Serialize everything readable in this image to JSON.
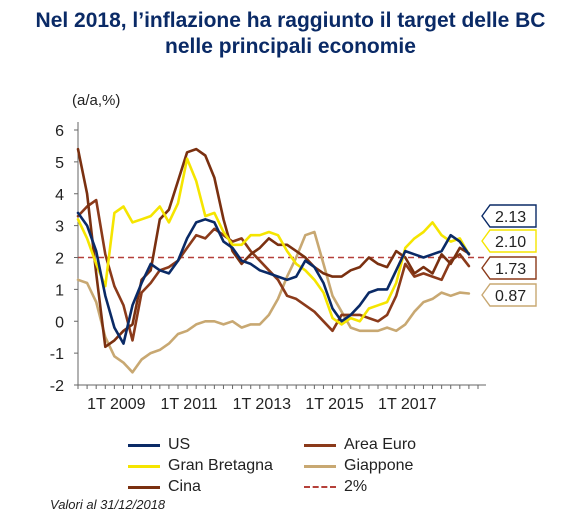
{
  "title_line1": "Nel 2018, l’inflazione ha raggiunto il target delle BC",
  "title_line2": "nelle principali economie",
  "note": "Valori al 31/12/2018",
  "chart_data": {
    "type": "line",
    "ylabel": "(a/a,%)",
    "ylim": [
      -2,
      6
    ],
    "yticks": [
      -2,
      -1,
      0,
      1,
      2,
      3,
      4,
      5,
      6
    ],
    "xlim": [
      2008.0,
      2019.0
    ],
    "xticks": [
      {
        "label": "1T 2009",
        "x": 2009.0
      },
      {
        "label": "1T 2011",
        "x": 2011.0
      },
      {
        "label": "1T 2013",
        "x": 2013.0
      },
      {
        "label": "1T 2015",
        "x": 2015.0
      },
      {
        "label": "1T 2017",
        "x": 2017.0
      }
    ],
    "reference_line": {
      "name": "2%",
      "value": 2,
      "color": "#b5403a"
    },
    "end_labels": [
      "2.13",
      "2.10",
      "1.73",
      "0.87"
    ],
    "series": [
      {
        "name": "US",
        "color": "#0a2a66",
        "x": [
          2008.0,
          2008.25,
          2008.5,
          2008.75,
          2009.0,
          2009.25,
          2009.5,
          2009.75,
          2010.0,
          2010.25,
          2010.5,
          2010.75,
          2011.0,
          2011.25,
          2011.5,
          2011.75,
          2012.0,
          2012.25,
          2012.5,
          2012.75,
          2013.0,
          2013.25,
          2013.5,
          2013.75,
          2014.0,
          2014.25,
          2014.5,
          2014.75,
          2015.0,
          2015.25,
          2015.5,
          2015.75,
          2016.0,
          2016.25,
          2016.5,
          2016.75,
          2017.0,
          2017.25,
          2017.5,
          2017.75,
          2018.0,
          2018.25,
          2018.5,
          2018.75
        ],
        "values": [
          3.4,
          3.0,
          2.2,
          0.8,
          -0.2,
          -0.7,
          0.5,
          1.2,
          1.8,
          1.6,
          1.5,
          1.9,
          2.6,
          3.1,
          3.2,
          3.1,
          2.5,
          2.3,
          1.9,
          1.8,
          1.6,
          1.5,
          1.4,
          1.3,
          1.4,
          1.9,
          1.7,
          1.2,
          0.4,
          0.0,
          0.2,
          0.5,
          0.9,
          1.0,
          1.0,
          1.6,
          2.2,
          2.1,
          2.0,
          2.1,
          2.2,
          2.7,
          2.5,
          2.1
        ]
      },
      {
        "name": "Area Euro",
        "color": "#8b3a1a",
        "x": [
          2008.0,
          2008.25,
          2008.5,
          2008.75,
          2009.0,
          2009.25,
          2009.5,
          2009.75,
          2010.0,
          2010.25,
          2010.5,
          2010.75,
          2011.0,
          2011.25,
          2011.5,
          2011.75,
          2012.0,
          2012.25,
          2012.5,
          2012.75,
          2013.0,
          2013.25,
          2013.5,
          2013.75,
          2014.0,
          2014.25,
          2014.5,
          2014.75,
          2015.0,
          2015.25,
          2015.5,
          2015.75,
          2016.0,
          2016.25,
          2016.5,
          2016.75,
          2017.0,
          2017.25,
          2017.5,
          2017.75,
          2018.0,
          2018.25,
          2018.5,
          2018.75
        ],
        "values": [
          3.3,
          3.6,
          3.8,
          2.1,
          1.1,
          0.5,
          -0.6,
          0.9,
          1.2,
          1.6,
          1.7,
          1.9,
          2.3,
          2.7,
          2.6,
          2.9,
          2.7,
          2.5,
          2.6,
          2.2,
          1.9,
          1.6,
          1.3,
          0.8,
          0.7,
          0.5,
          0.3,
          0.0,
          -0.3,
          0.2,
          0.2,
          0.2,
          0.1,
          0.0,
          0.2,
          0.8,
          1.8,
          1.4,
          1.5,
          1.4,
          1.3,
          1.9,
          2.1,
          1.73
        ]
      },
      {
        "name": "Gran Bretagna",
        "color": "#f5e500",
        "x": [
          2008.0,
          2008.25,
          2008.5,
          2008.75,
          2009.0,
          2009.25,
          2009.5,
          2009.75,
          2010.0,
          2010.25,
          2010.5,
          2010.75,
          2011.0,
          2011.25,
          2011.5,
          2011.75,
          2012.0,
          2012.25,
          2012.5,
          2012.75,
          2013.0,
          2013.25,
          2013.5,
          2013.75,
          2014.0,
          2014.25,
          2014.5,
          2014.75,
          2015.0,
          2015.25,
          2015.5,
          2015.75,
          2016.0,
          2016.25,
          2016.5,
          2016.75,
          2017.0,
          2017.25,
          2017.5,
          2017.75,
          2018.0,
          2018.25,
          2018.5,
          2018.75
        ],
        "values": [
          3.2,
          2.6,
          1.8,
          1.1,
          3.4,
          3.6,
          3.1,
          3.2,
          3.3,
          3.6,
          3.1,
          3.7,
          5.1,
          4.4,
          3.3,
          3.4,
          2.8,
          2.4,
          2.4,
          2.7,
          2.7,
          2.8,
          2.7,
          2.2,
          1.8,
          1.6,
          1.3,
          0.9,
          0.1,
          -0.1,
          0.1,
          0.0,
          0.4,
          0.5,
          0.6,
          1.2,
          2.3,
          2.6,
          2.8,
          3.1,
          2.7,
          2.5,
          2.6,
          2.1
        ]
      },
      {
        "name": "Giappone",
        "color": "#c8a872",
        "x": [
          2008.0,
          2008.25,
          2008.5,
          2008.75,
          2009.0,
          2009.25,
          2009.5,
          2009.75,
          2010.0,
          2010.25,
          2010.5,
          2010.75,
          2011.0,
          2011.25,
          2011.5,
          2011.75,
          2012.0,
          2012.25,
          2012.5,
          2012.75,
          2013.0,
          2013.25,
          2013.5,
          2013.75,
          2014.0,
          2014.25,
          2014.5,
          2014.75,
          2015.0,
          2015.25,
          2015.5,
          2015.75,
          2016.0,
          2016.25,
          2016.5,
          2016.75,
          2017.0,
          2017.25,
          2017.5,
          2017.75,
          2018.0,
          2018.25,
          2018.5,
          2018.75
        ],
        "values": [
          1.3,
          1.2,
          0.6,
          -0.5,
          -1.1,
          -1.3,
          -1.6,
          -1.2,
          -1.0,
          -0.9,
          -0.7,
          -0.4,
          -0.3,
          -0.1,
          0.0,
          0.0,
          -0.1,
          0.0,
          -0.2,
          -0.1,
          -0.1,
          0.2,
          0.7,
          1.4,
          2.0,
          2.7,
          2.8,
          1.8,
          0.8,
          0.3,
          -0.2,
          -0.3,
          -0.3,
          -0.3,
          -0.2,
          -0.3,
          -0.1,
          0.3,
          0.6,
          0.7,
          0.9,
          0.8,
          0.9,
          0.87
        ]
      },
      {
        "name": "Cina",
        "color": "#7a3010",
        "x": [
          2008.0,
          2008.25,
          2008.5,
          2008.75,
          2009.0,
          2009.25,
          2009.5,
          2009.75,
          2010.0,
          2010.25,
          2010.5,
          2010.75,
          2011.0,
          2011.25,
          2011.5,
          2011.75,
          2012.0,
          2012.25,
          2012.5,
          2012.75,
          2013.0,
          2013.25,
          2013.5,
          2013.75,
          2014.0,
          2014.25,
          2014.5,
          2014.75,
          2015.0,
          2015.25,
          2015.5,
          2015.75,
          2016.0,
          2016.25,
          2016.5,
          2016.75,
          2017.0,
          2017.25,
          2017.5,
          2017.75,
          2018.0,
          2018.25,
          2018.5,
          2018.75
        ],
        "values": [
          5.4,
          4.0,
          1.5,
          -0.8,
          -0.6,
          -0.3,
          -0.1,
          1.3,
          1.6,
          3.2,
          3.5,
          4.4,
          5.3,
          5.4,
          5.2,
          4.5,
          3.2,
          2.2,
          1.8,
          2.1,
          2.3,
          2.6,
          2.4,
          2.4,
          2.2,
          2.0,
          1.7,
          1.5,
          1.4,
          1.4,
          1.6,
          1.7,
          2.0,
          1.8,
          1.7,
          2.2,
          2.0,
          1.5,
          1.7,
          1.5,
          2.1,
          1.8,
          2.3,
          2.13
        ]
      }
    ],
    "legend": {
      "placement": "bottom",
      "items": [
        "US",
        "Area Euro",
        "Gran Bretagna",
        "Giappone",
        "Cina",
        "2%"
      ]
    }
  },
  "legend_items": [
    {
      "label": "US",
      "color": "#0a2a66",
      "style": "solid"
    },
    {
      "label": "Area Euro",
      "color": "#8b3a1a",
      "style": "solid"
    },
    {
      "label": "Gran Bretagna",
      "color": "#f5e500",
      "style": "solid"
    },
    {
      "label": "Giappone",
      "color": "#c8a872",
      "style": "solid"
    },
    {
      "label": "Cina",
      "color": "#7a3010",
      "style": "solid"
    },
    {
      "label": "2%",
      "color": "#b5403a",
      "style": "dashed"
    }
  ],
  "end_label_colors": [
    "#0a2a66",
    "#f5e500",
    "#8b3a1a",
    "#c8a872"
  ]
}
